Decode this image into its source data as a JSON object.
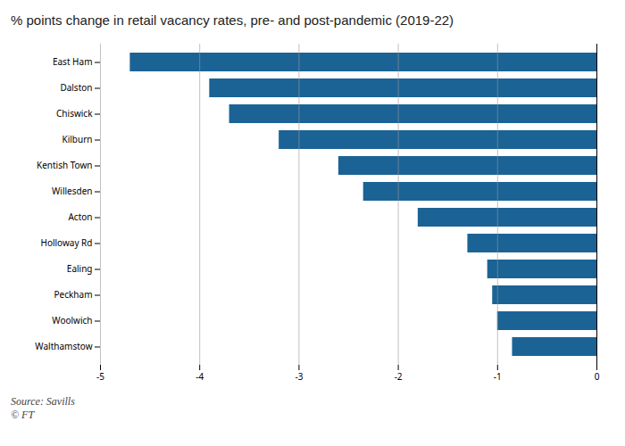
{
  "chart_data": {
    "type": "bar",
    "orientation": "horizontal",
    "title": "% points change in retail vacancy rates, pre- and post-pandemic (2019-22)",
    "categories": [
      "East Ham",
      "Dalston",
      "Chiswick",
      "Kilburn",
      "Kentish Town",
      "Willesden",
      "Acton",
      "Holloway Rd",
      "Ealing",
      "Peckham",
      "Woolwich",
      "Walthamstow"
    ],
    "values": [
      -4.7,
      -3.9,
      -3.7,
      -3.2,
      -2.6,
      -2.35,
      -1.8,
      -1.3,
      -1.1,
      -1.05,
      -1.0,
      -0.85
    ],
    "color": "#1b6395",
    "xlim": [
      -5,
      0
    ],
    "xticks": [
      -5,
      -4,
      -3,
      -2,
      -1,
      0
    ],
    "grid": true,
    "caption": "Source: Savills\n© FT"
  }
}
